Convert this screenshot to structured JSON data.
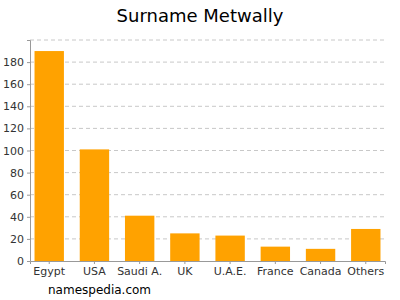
{
  "chart_data": {
    "type": "bar",
    "title": "Surname Metwally",
    "categories": [
      "Egypt",
      "USA",
      "Saudi A.",
      "UK",
      "U.A.E.",
      "France",
      "Canada",
      "Others"
    ],
    "values": [
      190,
      101,
      41,
      25,
      23,
      13,
      11,
      29
    ],
    "color": "#ffa200",
    "ylim": [
      0,
      200
    ],
    "yticks": [
      0,
      20,
      40,
      60,
      80,
      100,
      120,
      140,
      160,
      180
    ],
    "grid": true,
    "source": "namespedia.com"
  }
}
